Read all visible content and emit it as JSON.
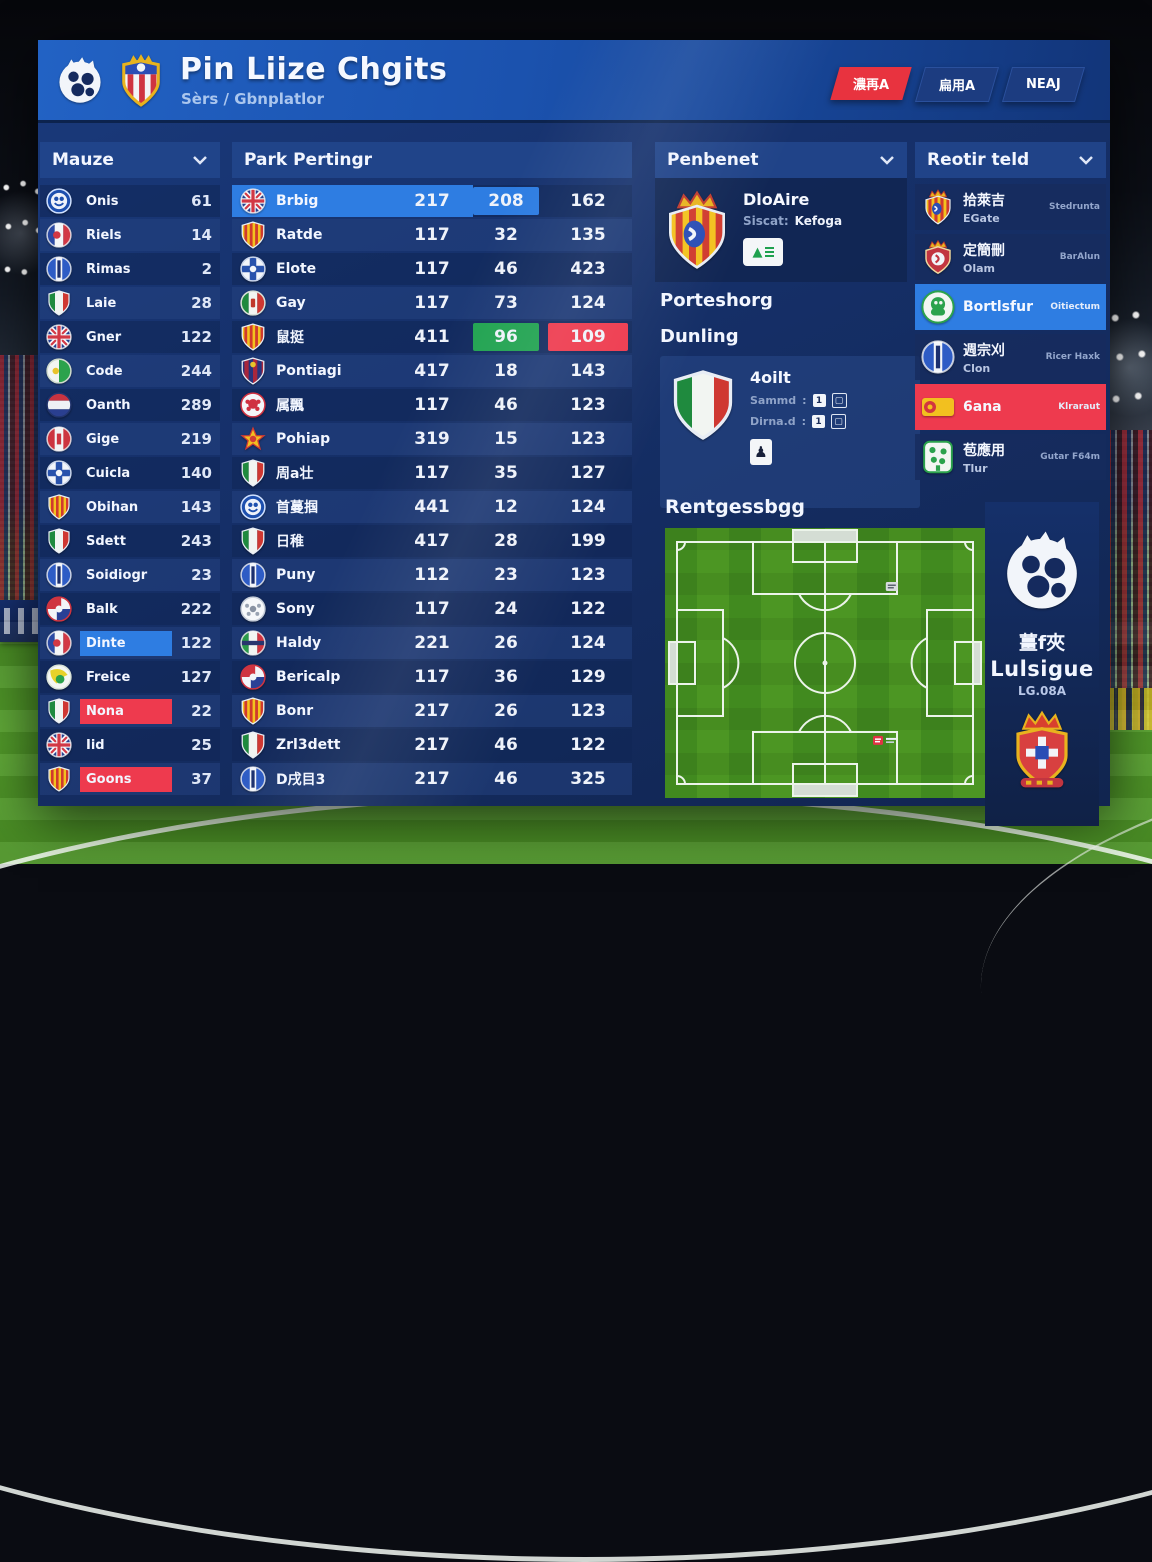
{
  "colors": {
    "accent_blue": "#2e7de2",
    "accent_red": "#ee3a4e",
    "accent_green": "#21a351",
    "header_blue": "#1b52ae",
    "card_navy": "#16316c"
  },
  "header": {
    "title": "Pin Liize Chgits",
    "subtitle": "Sèrs / Gbnplatlor",
    "logos": [
      "premier-lion",
      "striped-crest"
    ],
    "buttons": [
      {
        "label": "濃再A",
        "style": "red"
      },
      {
        "label": "扁用A",
        "style": "navy"
      },
      {
        "label": "NEAJ",
        "style": "navy"
      }
    ]
  },
  "left_panel": {
    "title": "Mauze",
    "items": [
      {
        "label": "Onis",
        "value": "61",
        "badge": "crest-blue-lion"
      },
      {
        "label": "Riels",
        "value": "14",
        "badge": "flag-fr"
      },
      {
        "label": "Rimas",
        "value": "2",
        "badge": "flag-blue-stripe"
      },
      {
        "label": "Laie",
        "value": "28",
        "badge": "shield-italy"
      },
      {
        "label": "Gner",
        "value": "122",
        "badge": "flag-uk"
      },
      {
        "label": "Code",
        "value": "244",
        "badge": "circle-green-white"
      },
      {
        "label": "Oanth",
        "value": "289",
        "badge": "circle-stripes-rwb"
      },
      {
        "label": "Gige",
        "value": "219",
        "badge": "circle-red-white"
      },
      {
        "label": "Cuicla",
        "value": "140",
        "badge": "circle-blue-cross"
      },
      {
        "label": "Obihan",
        "value": "143",
        "badge": "shield-catalonia"
      },
      {
        "label": "Sdett",
        "value": "243",
        "badge": "shield-italy"
      },
      {
        "label": "Soidiogr",
        "value": "23",
        "badge": "flag-blue-stripe"
      },
      {
        "label": "Balk",
        "value": "222",
        "badge": "circle-rwb-patch"
      },
      {
        "label": "Dinte",
        "value": "122",
        "badge": "flag-fr",
        "highlight": "blue"
      },
      {
        "label": "Freice",
        "value": "127",
        "badge": "circle-green-yellow"
      },
      {
        "label": "Nona",
        "value": "22",
        "badge": "shield-italy",
        "highlight": "red"
      },
      {
        "label": "Iid",
        "value": "25",
        "badge": "flag-uk"
      },
      {
        "label": "Goons",
        "value": "37",
        "badge": "shield-catalonia",
        "highlight": "red"
      }
    ]
  },
  "stats_table": {
    "title": "Park Pertingr",
    "rows": [
      {
        "label": "Brbig",
        "badge": "flag-uk",
        "values": [
          "217",
          "208",
          "162"
        ],
        "row_highlight": "blue",
        "cells": [
          "plain",
          "blue",
          "plain"
        ]
      },
      {
        "label": "Ratde",
        "badge": "shield-catalonia",
        "values": [
          "117",
          "32",
          "135"
        ],
        "cells": [
          "plain",
          "plain",
          "plain"
        ]
      },
      {
        "label": "Elote",
        "badge": "circle-blue-cross",
        "values": [
          "117",
          "46",
          "423"
        ],
        "cells": [
          "plain",
          "plain",
          "plain"
        ]
      },
      {
        "label": "Gay",
        "badge": "circle-italy",
        "values": [
          "117",
          "73",
          "124"
        ],
        "cells": [
          "plain",
          "plain",
          "plain"
        ]
      },
      {
        "label": "鼠挺",
        "badge": "shield-catalonia",
        "values": [
          "411",
          "96",
          "109"
        ],
        "cells": [
          "plain",
          "green",
          "red"
        ]
      },
      {
        "label": "Pontiagi",
        "badge": "crest-red-blue",
        "values": [
          "417",
          "18",
          "143"
        ],
        "cells": [
          "plain",
          "plain",
          "plain"
        ]
      },
      {
        "label": "属飄",
        "badge": "circle-red-crab",
        "values": [
          "117",
          "46",
          "123"
        ],
        "cells": [
          "plain",
          "plain",
          "plain"
        ]
      },
      {
        "label": "Pohiap",
        "badge": "star-badge",
        "values": [
          "319",
          "15",
          "123"
        ],
        "cells": [
          "plain",
          "plain",
          "plain"
        ]
      },
      {
        "label": "周a壮",
        "badge": "shield-italy",
        "values": [
          "117",
          "35",
          "127"
        ],
        "cells": [
          "plain",
          "plain",
          "plain"
        ]
      },
      {
        "label": "首蔓掴",
        "badge": "crest-blue-lion",
        "values": [
          "441",
          "12",
          "124"
        ],
        "cells": [
          "plain",
          "plain",
          "plain"
        ]
      },
      {
        "label": "日稚",
        "badge": "shield-italy",
        "values": [
          "417",
          "28",
          "199"
        ],
        "cells": [
          "plain",
          "plain",
          "plain"
        ]
      },
      {
        "label": "Puny",
        "badge": "flag-blue-stripe",
        "values": [
          "112",
          "23",
          "123"
        ],
        "cells": [
          "plain",
          "plain",
          "plain"
        ]
      },
      {
        "label": "Sony",
        "badge": "circle-ball",
        "values": [
          "117",
          "24",
          "122"
        ],
        "cells": [
          "plain",
          "plain",
          "plain"
        ]
      },
      {
        "label": "Haldy",
        "badge": "circle-green-red",
        "values": [
          "221",
          "26",
          "124"
        ],
        "cells": [
          "plain",
          "plain",
          "plain"
        ]
      },
      {
        "label": "Bericalp",
        "badge": "circle-rwb-patch",
        "values": [
          "117",
          "36",
          "129"
        ],
        "cells": [
          "plain",
          "plain",
          "plain"
        ]
      },
      {
        "label": "Bonr",
        "badge": "shield-catalonia",
        "values": [
          "217",
          "26",
          "123"
        ],
        "cells": [
          "plain",
          "plain",
          "plain"
        ]
      },
      {
        "label": "Zrl3dett",
        "badge": "shield-italy",
        "values": [
          "217",
          "46",
          "122"
        ],
        "cells": [
          "plain",
          "plain",
          "plain"
        ]
      },
      {
        "label": "D戌目3",
        "badge": "flag-blue-stripe",
        "values": [
          "217",
          "46",
          "325"
        ],
        "cells": [
          "plain",
          "plain",
          "plain"
        ]
      }
    ]
  },
  "club_panel": {
    "title": "Penbenet",
    "name": "DloAire",
    "meta_label": "Siscat:",
    "meta_value": "Kefoga",
    "badge": "crest-crown-catalonia",
    "tag_glyph": "▲"
  },
  "section2": {
    "header": "Porteshorg",
    "panel_title": "Dunling",
    "name": "4oilt",
    "badge": "shield-italy",
    "lines": [
      {
        "label": "Sammd",
        "value": "1"
      },
      {
        "label": "Dirna.d",
        "value": "1"
      }
    ],
    "tag_glyph": "♟"
  },
  "pitch_panel": {
    "title": "Rentgessbgg",
    "markers": [
      {
        "x": 69,
        "y": 20,
        "color": "gray"
      },
      {
        "x": 65,
        "y": 77,
        "color": "red"
      }
    ]
  },
  "right_panel": {
    "title": "Reotir teld",
    "items": [
      {
        "title": "拾萊吉",
        "subtitle": "EGate",
        "note": "Stedrunta",
        "badge": "crest-crown-catalonia"
      },
      {
        "title": "定簡刪",
        "subtitle": "Olam",
        "note": "BarAlun",
        "badge": "crest-crown-red"
      },
      {
        "title": "Bortlsfur",
        "subtitle": "",
        "note": "Oitiectum",
        "badge": "circle-green-face",
        "highlight": "blue"
      },
      {
        "title": "週宗刈",
        "subtitle": "Clon",
        "note": "Ricer Haxk",
        "badge": "flag-blue-stripe"
      },
      {
        "title": "6ana",
        "subtitle": "",
        "note": "Klraraut",
        "badge": "badge-yellow",
        "highlight": "red"
      },
      {
        "title": "苞應用",
        "subtitle": "Tlur",
        "note": "Gutar F64m",
        "badge": "crest-green-white"
      }
    ]
  },
  "brand_panel": {
    "tagline": "薑f夾",
    "name": "Lulsigue",
    "sub": "LG.08A"
  }
}
